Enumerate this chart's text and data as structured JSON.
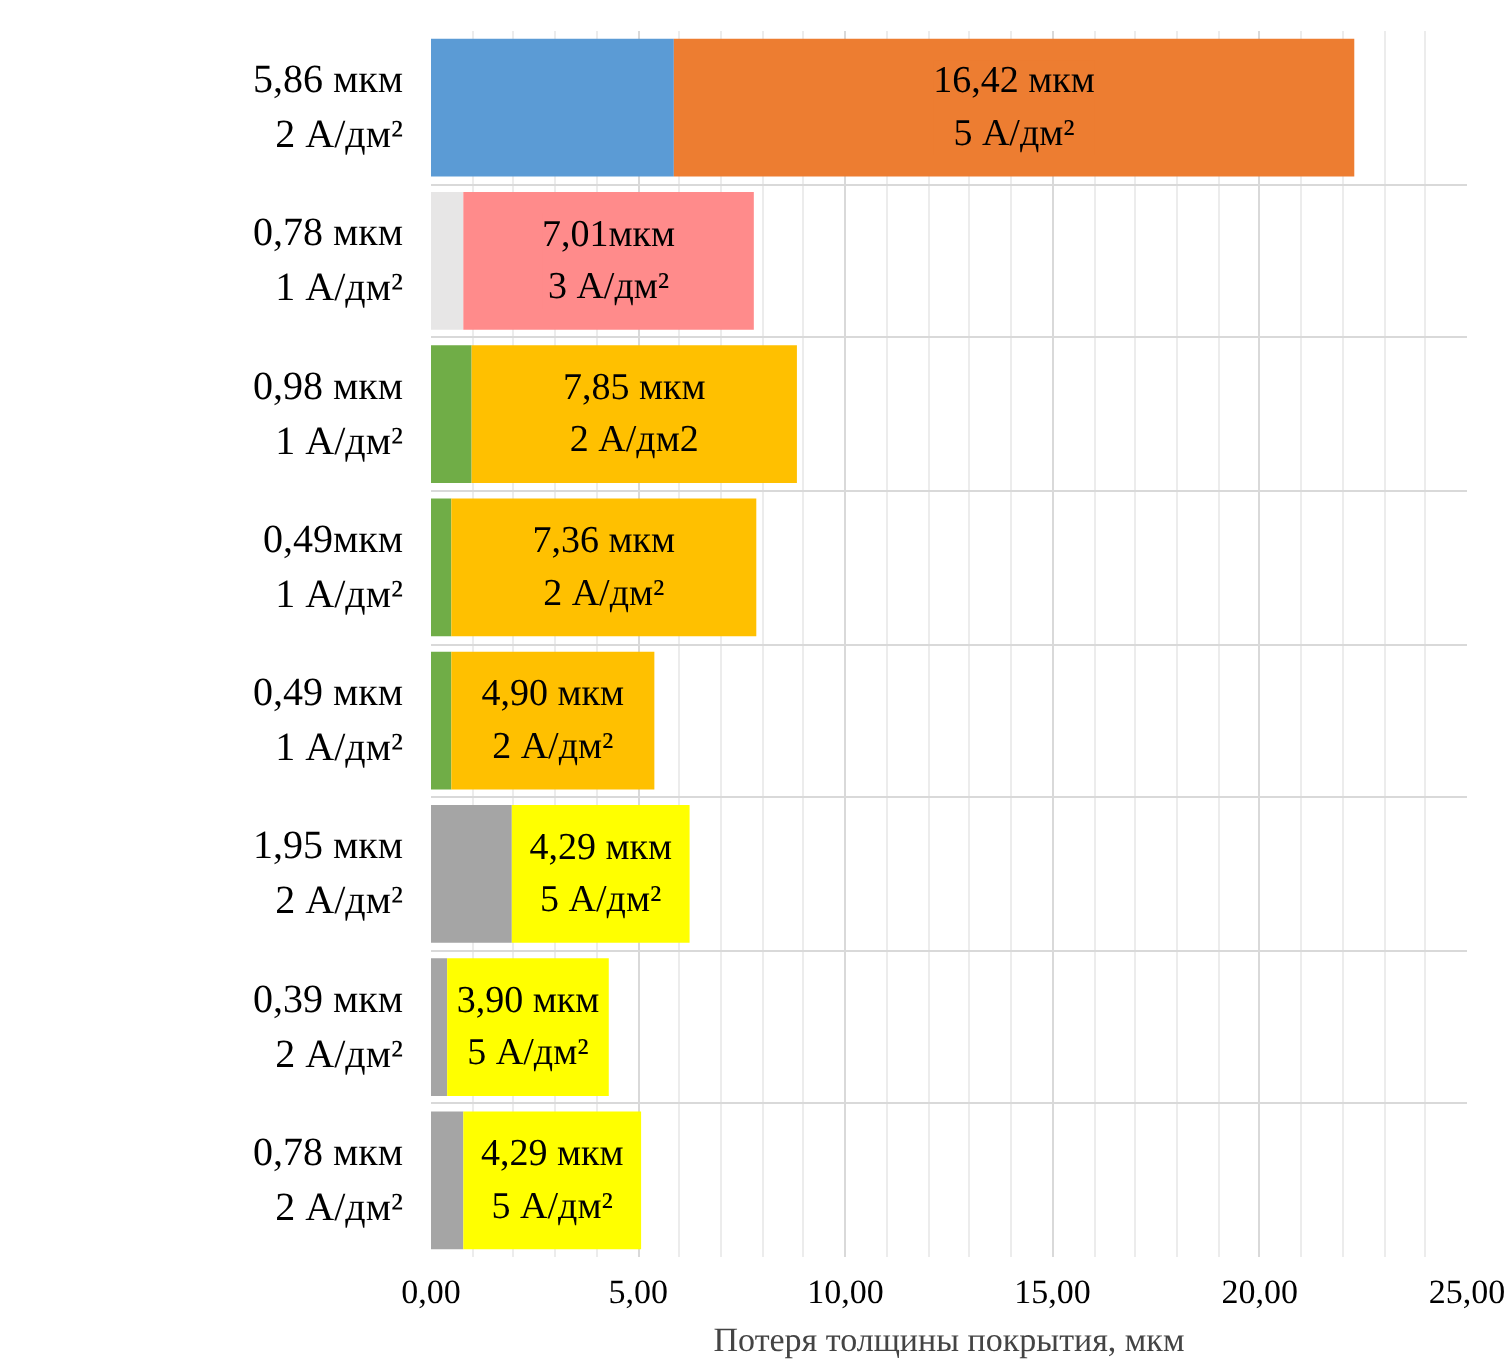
{
  "chart_data": {
    "type": "bar",
    "orientation": "horizontal",
    "stacked": true,
    "xlabel": "Потеря толщины покрытия, мкм",
    "categories": [
      null,
      null,
      null,
      null,
      null,
      null,
      null,
      null
    ],
    "series": [
      {
        "colors": [
          "#5b9bd5",
          "#e7e6e6",
          "#70ad47",
          "#70ad47",
          "#70ad47",
          "#a5a5a5",
          "#a5a5a5",
          "#a5a5a5"
        ],
        "values": [
          5.86,
          0.78,
          0.98,
          0.49,
          0.49,
          1.95,
          0.39,
          0.78
        ],
        "value_labels": [
          "5,86 мкм\n2 А/дм²",
          "0,78 мкм\n1 А/дм²",
          "0,98 мкм\n1 А/дм²",
          "0,49мкм\n1 А/дм²",
          "0,49 мкм\n1 А/дм²",
          "1,95 мкм\n2 А/дм²",
          "0,39 мкм\n2 А/дм²",
          "0,78 мкм\n2 А/дм²"
        ]
      },
      {
        "colors": [
          "#ed7d31",
          "#ff8b8b",
          "#ffc000",
          "#ffc000",
          "#ffc000",
          "#ffff00",
          "#ffff00",
          "#ffff00"
        ],
        "values": [
          16.42,
          7.01,
          7.85,
          7.36,
          4.9,
          4.29,
          3.9,
          4.29
        ],
        "value_labels": [
          "16,42 мкм\n5 А/дм²",
          "7,01мкм\n3 А/дм²",
          "7,85 мкм\n2 А/дм2",
          "7,36 мкм\n2 А/дм²",
          "4,90 мкм\n2 А/дм²",
          "4,29 мкм\n5 А/дм²",
          "3,90 мкм\n5 А/дм²",
          "4,29 мкм\n5 А/дм²"
        ]
      }
    ],
    "xlim": [
      0,
      25
    ],
    "xticks": [
      {
        "value": 0,
        "label": "0,00"
      },
      {
        "value": 5,
        "label": "5,00"
      },
      {
        "value": 10,
        "label": "10,00"
      },
      {
        "value": 15,
        "label": "15,00"
      },
      {
        "value": 20,
        "label": "20,00"
      },
      {
        "value": 25,
        "label": "25,00"
      }
    ],
    "grid": true,
    "tick_labels": "x"
  }
}
